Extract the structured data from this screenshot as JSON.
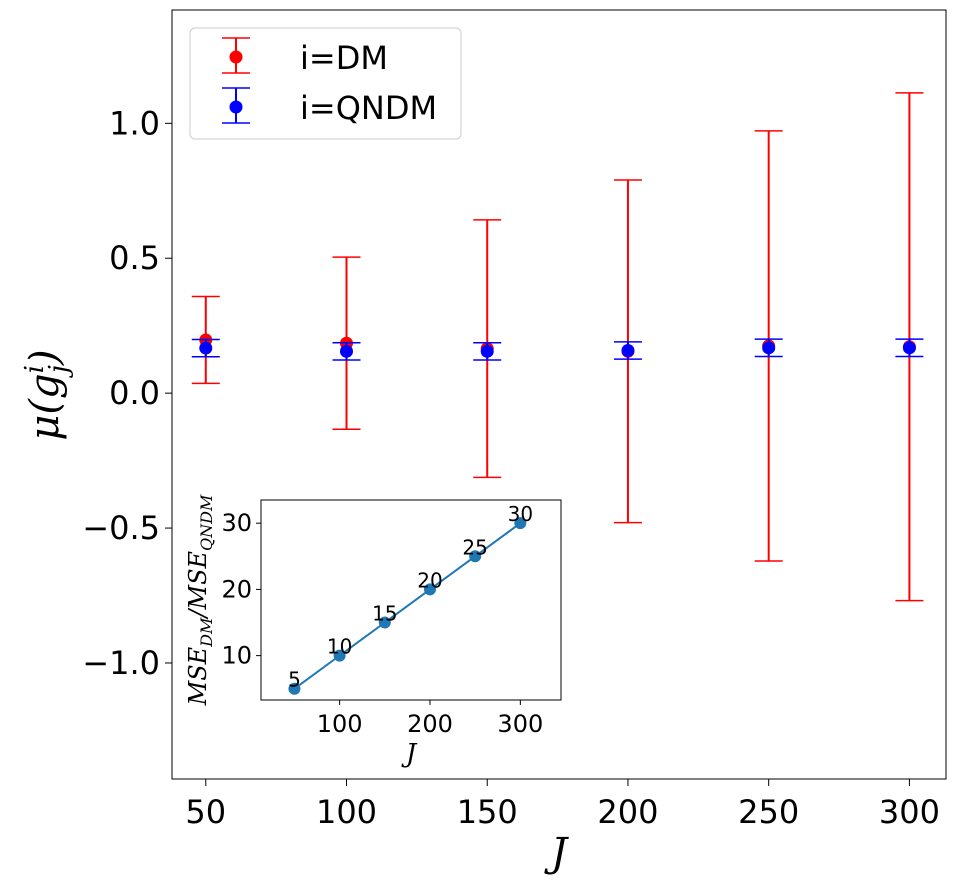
{
  "chart_data": [
    {
      "type": "errorbar",
      "xlabel": "J",
      "ylabel": "μ(g_j^i)",
      "ylabel_base": "μ(g",
      "ylabel_sub": "j",
      "ylabel_sup": "i",
      "ylabel_close": ")",
      "xlim": [
        38,
        313
      ],
      "ylim": [
        -1.43,
        1.42
      ],
      "xticks": [
        50,
        100,
        150,
        200,
        250,
        300
      ],
      "yticks": [
        1.0,
        0.5,
        0.0,
        -0.5,
        -1.0
      ],
      "ytick_labels": [
        "1.0",
        "0.5",
        "0.0",
        "−0.5",
        "−1.0"
      ],
      "legend_location": "upper-left",
      "series": [
        {
          "name": "i=DM",
          "color": "#ff0000",
          "x": [
            50,
            100,
            150,
            200,
            250,
            300
          ],
          "y": [
            0.197,
            0.185,
            0.165,
            0.155,
            0.175,
            0.172
          ],
          "err": [
            0.161,
            0.319,
            0.477,
            0.635,
            0.797,
            0.941
          ]
        },
        {
          "name": "i=QNDM",
          "color": "#0000ff",
          "x": [
            50,
            100,
            150,
            200,
            250,
            300
          ],
          "y": [
            0.167,
            0.155,
            0.155,
            0.158,
            0.168,
            0.168
          ],
          "err": [
            0.032,
            0.032,
            0.032,
            0.032,
            0.032,
            0.032
          ]
        }
      ]
    },
    {
      "type": "line",
      "inset": true,
      "xlabel": "J",
      "ylabel": "MSE_DM/MSE_QNDM",
      "ylabel_parts": [
        "MSE",
        "DM",
        "/MSE",
        "QNDM"
      ],
      "xlim": [
        13,
        345
      ],
      "ylim": [
        3.3,
        33.5
      ],
      "xticks": [
        100,
        200,
        300
      ],
      "yticks": [
        10,
        20,
        30
      ],
      "color": "#1f77b4",
      "x": [
        50,
        100,
        150,
        200,
        250,
        300
      ],
      "y": [
        5.0,
        10.0,
        15.0,
        20.0,
        25.0,
        30.0
      ],
      "point_labels": [
        "5",
        "10",
        "15",
        "20",
        "25",
        "30"
      ]
    }
  ]
}
